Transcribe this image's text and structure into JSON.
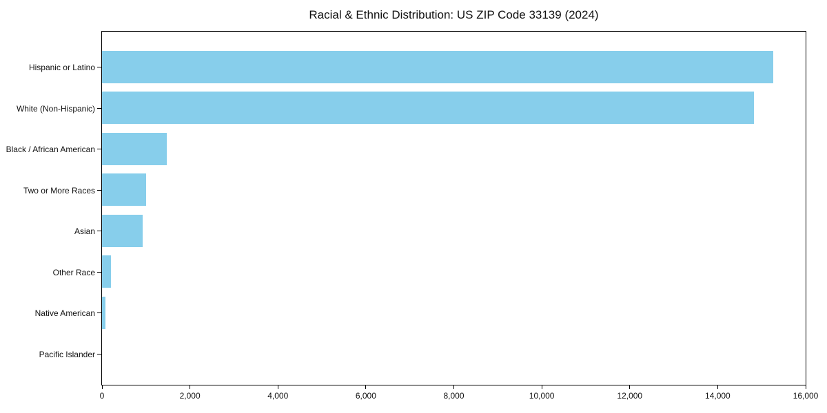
{
  "chart_data": {
    "type": "bar",
    "orientation": "horizontal",
    "title": "Racial & Ethnic Distribution: US ZIP Code 33139 (2024)",
    "categories": [
      "Hispanic or Latino",
      "White (Non-Hispanic)",
      "Black / African American",
      "Two or More Races",
      "Asian",
      "Other Race",
      "Native American",
      "Pacific Islander"
    ],
    "values": [
      15270,
      14820,
      1480,
      1000,
      930,
      200,
      75,
      0
    ],
    "xlabel": "",
    "ylabel": "",
    "xlim": [
      0,
      16000
    ],
    "x_ticks": [
      0,
      2000,
      4000,
      6000,
      8000,
      10000,
      12000,
      14000,
      16000
    ],
    "x_tick_labels": [
      "0",
      "2,000",
      "4,000",
      "6,000",
      "8,000",
      "10,000",
      "12,000",
      "14,000",
      "16,000"
    ],
    "bar_color": "#87CEEB",
    "grid": false,
    "legend_position": "none"
  }
}
